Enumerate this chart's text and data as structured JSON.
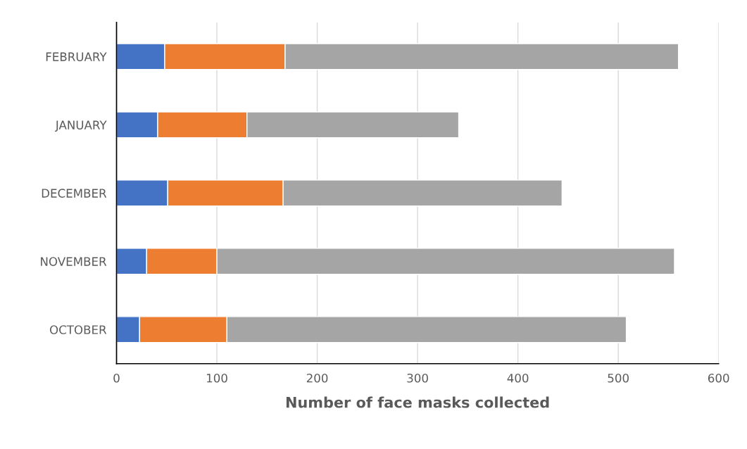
{
  "chart_data": {
    "type": "bar",
    "orientation": "horizontal",
    "stacked": true,
    "xlabel": "Number of face masks collected",
    "categories": [
      "FEBRUARY",
      "JANUARY",
      "DECEMBER",
      "NOVEMBER",
      "OCTOBER"
    ],
    "series": [
      {
        "color": "#4472c4",
        "values": [
          48,
          41,
          51,
          30,
          23
        ]
      },
      {
        "color": "#ed7d31",
        "values": [
          120,
          89,
          115,
          70,
          87
        ]
      },
      {
        "color": "#a5a5a5",
        "values": [
          392,
          211,
          278,
          456,
          398
        ]
      }
    ],
    "xlim": [
      0,
      600
    ],
    "xticks": [
      0,
      100,
      200,
      300,
      400,
      500,
      600
    ],
    "grid": "x"
  }
}
